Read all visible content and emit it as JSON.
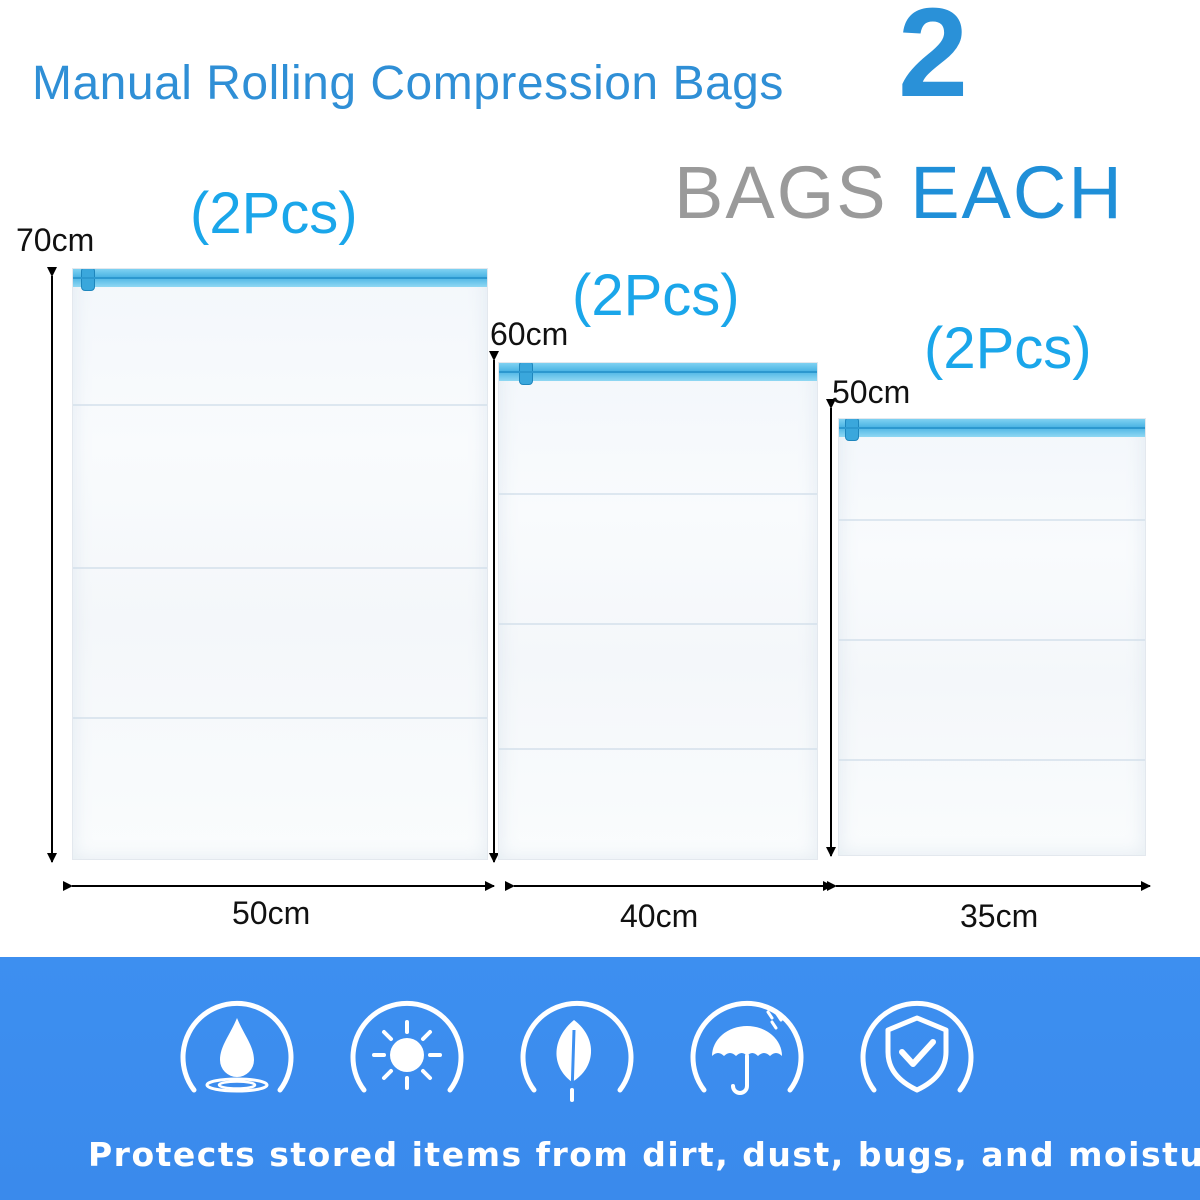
{
  "header": {
    "title": "Manual Rolling Compression Bags",
    "count": "2",
    "bags_word": "BAGS",
    "each_word": "EACH"
  },
  "bags": [
    {
      "qty_label": "(2Pcs)",
      "height_label": "70cm",
      "width_label": "50cm"
    },
    {
      "qty_label": "(2Pcs)",
      "height_label": "60cm",
      "width_label": "40cm"
    },
    {
      "qty_label": "(2Pcs)",
      "height_label": "50cm",
      "width_label": "35cm"
    }
  ],
  "features": {
    "icons": [
      "water-drop-icon",
      "sun-icon",
      "leaf-icon",
      "umbrella-icon",
      "shield-check-icon"
    ],
    "text": "Protects stored items from dirt, dust, bugs, and moisture."
  },
  "colors": {
    "title_blue": "#2f8fd6",
    "pcs_blue": "#1aa6ea",
    "banner_blue": "#3d8ff0",
    "gray": "#9a9a9a"
  }
}
